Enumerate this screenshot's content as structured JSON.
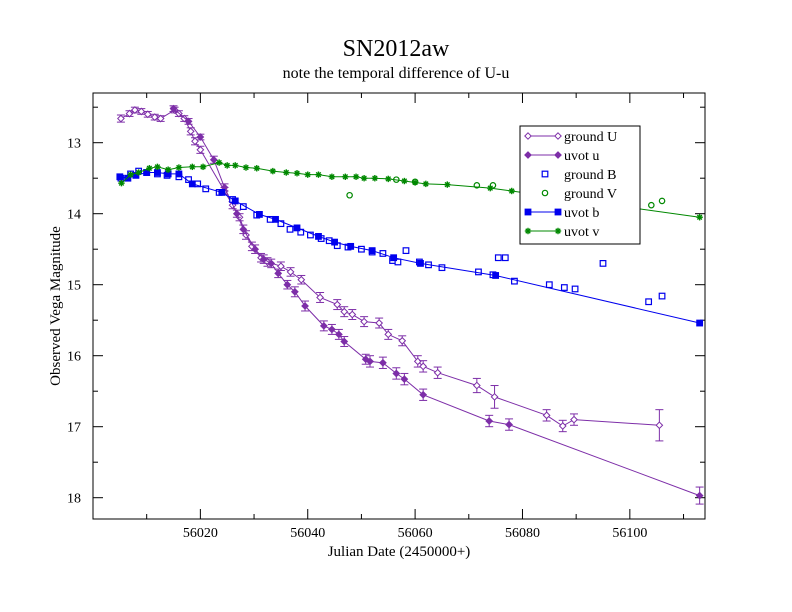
{
  "chart_data": {
    "type": "scatter",
    "title": "SN2012aw",
    "subtitle": "note the temporal difference of U-u",
    "xlabel": "Julian Date (2450000+)",
    "ylabel": "Observed Vega Magnitude",
    "xlim": [
      56000,
      56114
    ],
    "ylim": [
      18.3,
      12.3
    ],
    "y_inverted": true,
    "x_ticks": [
      56020,
      56040,
      56060,
      56080,
      56100
    ],
    "y_ticks": [
      13,
      14,
      15,
      16,
      17,
      18
    ],
    "legend_position": "top-right",
    "grid": false,
    "series": [
      {
        "name": "ground U",
        "color": "#7d2ea8",
        "marker": "diamond-open",
        "line": true,
        "errorbars": true,
        "points": [
          [
            56005.2,
            12.66,
            0.05
          ],
          [
            56006.8,
            12.59,
            0.04
          ],
          [
            56007.8,
            12.54,
            0.04
          ],
          [
            56009.0,
            12.56,
            0.04
          ],
          [
            56010.2,
            12.6,
            0.04
          ],
          [
            56011.5,
            12.64,
            0.04
          ],
          [
            56012.6,
            12.66,
            0.04
          ],
          [
            56015.2,
            12.54,
            0.04
          ],
          [
            56016.0,
            12.59,
            0.04
          ],
          [
            56017.0,
            12.66,
            0.04
          ],
          [
            56018.2,
            12.84,
            0.05
          ],
          [
            56019.0,
            12.98,
            0.05
          ],
          [
            56020.0,
            13.1,
            0.05
          ],
          [
            56024.5,
            13.68,
            0.05
          ],
          [
            56026.0,
            13.88,
            0.05
          ],
          [
            56027.3,
            14.05,
            0.05
          ],
          [
            56028.5,
            14.3,
            0.06
          ],
          [
            56029.6,
            14.46,
            0.06
          ],
          [
            56031.3,
            14.62,
            0.06
          ],
          [
            56032.5,
            14.68,
            0.06
          ],
          [
            56035.0,
            14.74,
            0.06
          ],
          [
            56036.8,
            14.82,
            0.06
          ],
          [
            56038.8,
            14.93,
            0.06
          ],
          [
            56042.3,
            15.18,
            0.07
          ],
          [
            56045.5,
            15.28,
            0.07
          ],
          [
            56046.8,
            15.38,
            0.07
          ],
          [
            56048.3,
            15.42,
            0.07
          ],
          [
            56050.5,
            15.52,
            0.07
          ],
          [
            56053.3,
            15.54,
            0.07
          ],
          [
            56055.0,
            15.7,
            0.07
          ],
          [
            56057.6,
            15.79,
            0.07
          ],
          [
            56060.5,
            16.08,
            0.08
          ],
          [
            56061.5,
            16.15,
            0.08
          ],
          [
            56064.2,
            16.24,
            0.08
          ],
          [
            56071.5,
            16.42,
            0.1
          ],
          [
            56074.8,
            16.58,
            0.16
          ],
          [
            56084.5,
            16.84,
            0.08
          ],
          [
            56087.5,
            16.99,
            0.08
          ],
          [
            56089.6,
            16.9,
            0.08
          ],
          [
            56105.5,
            16.98,
            0.22
          ]
        ]
      },
      {
        "name": "uvot u",
        "color": "#7d2ea8",
        "marker": "diamond-filled",
        "line": true,
        "errorbars": true,
        "points": [
          [
            56015.0,
            12.52,
            0.04
          ],
          [
            56017.8,
            12.7,
            0.04
          ],
          [
            56020.0,
            12.92,
            0.04
          ],
          [
            56022.5,
            13.24,
            0.05
          ],
          [
            56024.5,
            13.63,
            0.05
          ],
          [
            56026.8,
            14.0,
            0.05
          ],
          [
            56028.0,
            14.22,
            0.06
          ],
          [
            56030.2,
            14.5,
            0.06
          ],
          [
            56031.8,
            14.64,
            0.06
          ],
          [
            56033.2,
            14.7,
            0.06
          ],
          [
            56034.5,
            14.84,
            0.06
          ],
          [
            56036.2,
            15.0,
            0.06
          ],
          [
            56037.6,
            15.1,
            0.07
          ],
          [
            56039.5,
            15.3,
            0.07
          ],
          [
            56043.0,
            15.58,
            0.07
          ],
          [
            56044.5,
            15.63,
            0.07
          ],
          [
            56045.8,
            15.7,
            0.07
          ],
          [
            56046.8,
            15.8,
            0.07
          ],
          [
            56050.8,
            16.05,
            0.07
          ],
          [
            56051.6,
            16.08,
            0.08
          ],
          [
            56054.0,
            16.1,
            0.08
          ],
          [
            56056.5,
            16.25,
            0.08
          ],
          [
            56058.0,
            16.33,
            0.08
          ],
          [
            56061.5,
            16.55,
            0.08
          ],
          [
            56073.8,
            16.92,
            0.08
          ],
          [
            56077.5,
            16.97,
            0.08
          ],
          [
            56113.0,
            17.97,
            0.12
          ]
        ]
      },
      {
        "name": "ground B",
        "color": "#0000ee",
        "marker": "square-open",
        "line": false,
        "errorbars": false,
        "points": [
          [
            56005.2,
            13.5
          ],
          [
            56007.0,
            13.44
          ],
          [
            56008.5,
            13.4
          ],
          [
            56010.0,
            13.42
          ],
          [
            56012.0,
            13.44
          ],
          [
            56013.8,
            13.46
          ],
          [
            56016.0,
            13.48
          ],
          [
            56017.8,
            13.52
          ],
          [
            56019.5,
            13.58
          ],
          [
            56021.0,
            13.65
          ],
          [
            56023.5,
            13.7
          ],
          [
            56026.0,
            13.8
          ],
          [
            56028.0,
            13.9
          ],
          [
            56030.5,
            14.02
          ],
          [
            56033.0,
            14.08
          ],
          [
            56035.0,
            14.14
          ],
          [
            56036.7,
            14.22
          ],
          [
            56038.7,
            14.26
          ],
          [
            56040.5,
            14.3
          ],
          [
            56042.5,
            14.35
          ],
          [
            56044.0,
            14.38
          ],
          [
            56045.5,
            14.45
          ],
          [
            56047.5,
            14.47
          ],
          [
            56050.0,
            14.5
          ],
          [
            56052.0,
            14.54
          ],
          [
            56054.0,
            14.56
          ],
          [
            56055.8,
            14.66
          ],
          [
            56056.8,
            14.68
          ],
          [
            56058.3,
            14.52
          ],
          [
            56060.8,
            14.68
          ],
          [
            56062.5,
            14.72
          ],
          [
            56065.0,
            14.76
          ],
          [
            56071.8,
            14.82
          ],
          [
            56074.5,
            14.86
          ],
          [
            56075.5,
            14.62
          ],
          [
            56076.8,
            14.62
          ],
          [
            56078.5,
            14.95
          ],
          [
            56085.0,
            15.0
          ],
          [
            56087.8,
            15.04
          ],
          [
            56089.8,
            15.06
          ],
          [
            56095.0,
            14.7
          ],
          [
            56103.5,
            15.24
          ],
          [
            56106.0,
            15.16
          ]
        ]
      },
      {
        "name": "ground V",
        "color": "#008800",
        "marker": "circle-open",
        "line": false,
        "errorbars": false,
        "points": [
          [
            56047.8,
            13.74
          ],
          [
            56056.5,
            13.52
          ],
          [
            56060.0,
            13.55
          ],
          [
            56071.5,
            13.6
          ],
          [
            56074.5,
            13.6
          ],
          [
            56080.5,
            13.68
          ],
          [
            56085.0,
            13.7
          ],
          [
            56089.0,
            13.76
          ],
          [
            56091.0,
            13.8
          ],
          [
            56095.0,
            13.8
          ],
          [
            56104.0,
            13.88
          ],
          [
            56106.0,
            13.82
          ]
        ]
      },
      {
        "name": "uvot b",
        "color": "#0000ee",
        "marker": "square-filled",
        "line": true,
        "errorbars": false,
        "points": [
          [
            56005.0,
            13.48
          ],
          [
            56006.5,
            13.5
          ],
          [
            56008.0,
            13.46
          ],
          [
            56010.0,
            13.42
          ],
          [
            56012.0,
            13.42
          ],
          [
            56014.0,
            13.44
          ],
          [
            56016.0,
            13.44
          ],
          [
            56018.5,
            13.58
          ],
          [
            56024.0,
            13.7
          ],
          [
            56026.5,
            13.82
          ],
          [
            56031.0,
            14.01
          ],
          [
            56034.0,
            14.08
          ],
          [
            56038.0,
            14.2
          ],
          [
            56042.0,
            14.32
          ],
          [
            56045.0,
            14.4
          ],
          [
            56048.0,
            14.46
          ],
          [
            56052.0,
            14.52
          ],
          [
            56056.0,
            14.62
          ],
          [
            56061.0,
            14.7
          ],
          [
            56075.0,
            14.87
          ],
          [
            56113.0,
            15.54
          ]
        ]
      },
      {
        "name": "uvot v",
        "color": "#008800",
        "marker": "star",
        "line": true,
        "errorbars": false,
        "points": [
          [
            56005.3,
            13.57
          ],
          [
            56007.0,
            13.45
          ],
          [
            56008.5,
            13.42
          ],
          [
            56010.5,
            13.36
          ],
          [
            56012.0,
            13.34
          ],
          [
            56014.0,
            13.38
          ],
          [
            56016.0,
            13.35
          ],
          [
            56018.5,
            13.34
          ],
          [
            56020.5,
            13.34
          ],
          [
            56023.5,
            13.28
          ],
          [
            56025.0,
            13.32
          ],
          [
            56026.5,
            13.32
          ],
          [
            56028.5,
            13.35
          ],
          [
            56030.5,
            13.36
          ],
          [
            56033.5,
            13.4
          ],
          [
            56036.0,
            13.42
          ],
          [
            56038.0,
            13.43
          ],
          [
            56040.0,
            13.45
          ],
          [
            56042.0,
            13.45
          ],
          [
            56044.5,
            13.48
          ],
          [
            56047.0,
            13.48
          ],
          [
            56049.0,
            13.48
          ],
          [
            56050.5,
            13.5
          ],
          [
            56052.5,
            13.5
          ],
          [
            56055.0,
            13.51
          ],
          [
            56058.0,
            13.54
          ],
          [
            56060.0,
            13.56
          ],
          [
            56062.0,
            13.58
          ],
          [
            56066.0,
            13.59
          ],
          [
            56074.0,
            13.64
          ],
          [
            56078.0,
            13.68
          ],
          [
            56113.0,
            14.05
          ]
        ]
      }
    ]
  }
}
